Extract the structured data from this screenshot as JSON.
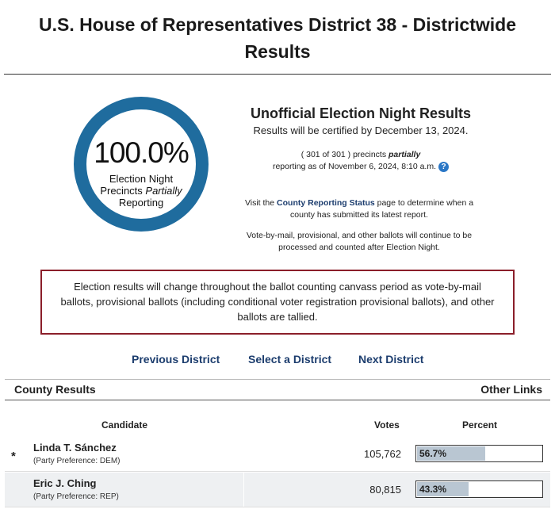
{
  "page": {
    "title_line1": "U.S. House of Representatives District 38 - Districtwide",
    "title_line2": "Results"
  },
  "gauge": {
    "percent_text": "100.0%",
    "label_line1": "Election Night",
    "label_line2_prefix": "Precincts ",
    "label_line2_em": "Partially",
    "label_line3": "Reporting",
    "percent_reporting": 100.0
  },
  "summary": {
    "heading": "Unofficial Election Night Results",
    "certified": "Results will be certified by December 13, 2024.",
    "precincts_open": "( 301 of 301 ) precincts ",
    "precincts_em": "partially",
    "reporting_as_of": "reporting as of November 6, 2024, 8:10 a.m.",
    "help_icon": "?",
    "visit_prefix": "Visit the ",
    "visit_link": "County Reporting Status",
    "visit_suffix": " page to determine when a county has submitted its latest report.",
    "vbm_note": "Vote-by-mail, provisional, and other ballots will continue to be processed and counted after Election Night."
  },
  "notice": "Election results will change throughout the ballot counting canvass period as vote-by-mail ballots, provisional ballots (including conditional voter registration provisional ballots), and other ballots are tallied.",
  "nav": {
    "previous": "Previous District",
    "select": "Select a District",
    "next": "Next District"
  },
  "section": {
    "county_results": "County Results",
    "other_links": "Other Links"
  },
  "table": {
    "headers": {
      "candidate": "Candidate",
      "votes": "Votes",
      "percent": "Percent"
    },
    "rows": [
      {
        "marker": "*",
        "name": "Linda T. Sánchez",
        "party": "(Party Preference: DEM)",
        "votes": "105,762",
        "percent": "56.7%",
        "percent_value": 56.7
      },
      {
        "marker": "",
        "name": "Eric J. Ching",
        "party": "(Party Preference: REP)",
        "votes": "80,815",
        "percent": "43.3%",
        "percent_value": 43.3
      }
    ]
  },
  "colors": {
    "ring": "#1f6c9e",
    "notice_border": "#8b1e2a",
    "link": "#1c3d6e",
    "bar_fill": "#b9c6d2"
  }
}
